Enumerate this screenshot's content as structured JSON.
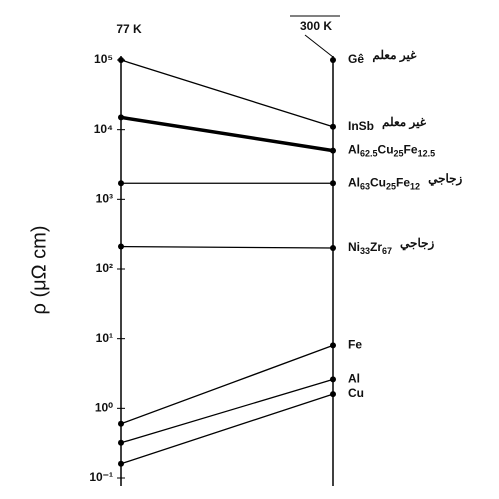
{
  "chart_data": {
    "type": "line",
    "ylabel": "ρ (μΩ cm)",
    "categories": [
      "77 K",
      "300 K"
    ],
    "log_scale": true,
    "ylim": [
      0.1,
      100000
    ],
    "yticks": [
      {
        "value": 100000,
        "label": "10⁵"
      },
      {
        "value": 10000,
        "label": "10⁴"
      },
      {
        "value": 1000,
        "label": "10³"
      },
      {
        "value": 100,
        "label": "10²"
      },
      {
        "value": 10,
        "label": "10¹"
      },
      {
        "value": 1,
        "label": "10⁰"
      },
      {
        "value": 0.1,
        "label": "10⁻¹"
      }
    ],
    "series": [
      {
        "name": "Gê",
        "tag": "غير معلم",
        "color": "#000000",
        "values": [
          null,
          100000
        ]
      },
      {
        "name": "InSb",
        "tag": "غير معلم",
        "color": "#000000",
        "values": [
          100000,
          11000
        ]
      },
      {
        "name": "Al62.5Cu25Fe12.5",
        "color": "#000000",
        "thick": true,
        "values": [
          15000,
          5000
        ]
      },
      {
        "name": "Al63Cu25Fe12",
        "tag": "زجاجي",
        "color": "#000000",
        "values": [
          1700,
          1700
        ]
      },
      {
        "name": "Ni33Zr67",
        "tag": "زجاجي",
        "color": "#000000",
        "values": [
          210,
          200
        ]
      },
      {
        "name": "Fe",
        "color": "#000000",
        "values": [
          0.6,
          8
        ]
      },
      {
        "name": "Al",
        "color": "#000000",
        "values": [
          0.32,
          2.6
        ]
      },
      {
        "name": "Cu",
        "color": "#000000",
        "values": [
          0.16,
          1.6
        ]
      }
    ]
  }
}
